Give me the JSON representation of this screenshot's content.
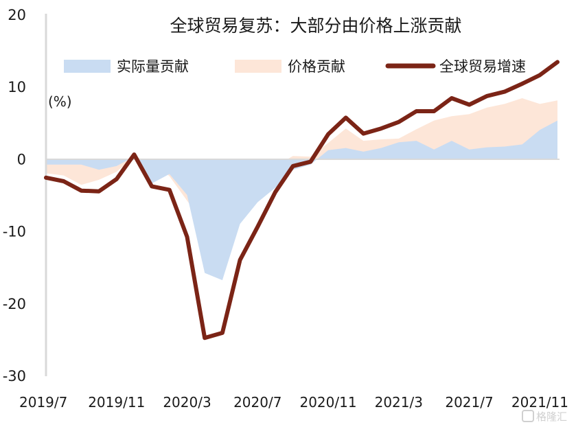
{
  "chart_data": {
    "type": "area",
    "title": "全球贸易复苏：大部分由价格上涨贡献",
    "ylabel": "(%)",
    "ylim": [
      -30,
      20
    ],
    "yticks": [
      20,
      10,
      0,
      -10,
      -20,
      -30
    ],
    "xtick_labels": [
      "2019/7",
      "2019/11",
      "2020/3",
      "2020/7",
      "2020/11",
      "2021/3",
      "2021/7",
      "2021/11"
    ],
    "xtick_index": [
      0,
      4,
      8,
      12,
      16,
      20,
      24,
      28
    ],
    "months": [
      "2019/7",
      "2019/8",
      "2019/9",
      "2019/10",
      "2019/11",
      "2019/12",
      "2020/1",
      "2020/2",
      "2020/3",
      "2020/4",
      "2020/5",
      "2020/6",
      "2020/7",
      "2020/8",
      "2020/9",
      "2020/10",
      "2020/11",
      "2020/12",
      "2021/1",
      "2021/2",
      "2021/3",
      "2021/4",
      "2021/5",
      "2021/6",
      "2021/7",
      "2021/8",
      "2021/9",
      "2021/10",
      "2021/11",
      "2021/12"
    ],
    "series": [
      {
        "name": "实际量贡献",
        "style": "area",
        "color": "#c9dcf2",
        "values": [
          -0.8,
          -0.8,
          -0.8,
          -1.5,
          -1.0,
          0.3,
          -3.4,
          -2.1,
          -5.0,
          -15.8,
          -16.8,
          -9.0,
          -6.0,
          -4.0,
          -1.5,
          -0.8,
          1.2,
          1.5,
          1.0,
          1.5,
          2.3,
          2.5,
          1.3,
          2.5,
          1.3,
          1.6,
          1.7,
          2.0,
          4.0,
          5.3
        ]
      },
      {
        "name": "价格贡献",
        "style": "area",
        "color": "#fde6d8",
        "values": [
          -2.0,
          -2.3,
          -3.6,
          -2.9,
          -1.8,
          0.3,
          -0.4,
          -2.4,
          -5.8,
          -9.1,
          -7.3,
          -5.0,
          -4.9,
          -1.0,
          0.4,
          0.3,
          2.2,
          4.2,
          2.5,
          2.7,
          2.8,
          4.1,
          5.3,
          5.9,
          6.2,
          7.1,
          7.6,
          8.4,
          7.6,
          8.1
        ]
      },
      {
        "name": "全球贸易增速",
        "style": "line",
        "color": "#7b2416",
        "values": [
          -2.6,
          -3.1,
          -4.4,
          -4.5,
          -2.8,
          0.6,
          -3.8,
          -4.3,
          -10.8,
          -24.8,
          -24.1,
          -14.0,
          -9.4,
          -4.6,
          -1.0,
          -0.4,
          3.4,
          5.7,
          3.5,
          4.2,
          5.1,
          6.6,
          6.6,
          8.4,
          7.5,
          8.7,
          9.3,
          10.4,
          11.6,
          13.4
        ]
      }
    ],
    "legend_position": "top"
  },
  "watermark": "格隆汇"
}
